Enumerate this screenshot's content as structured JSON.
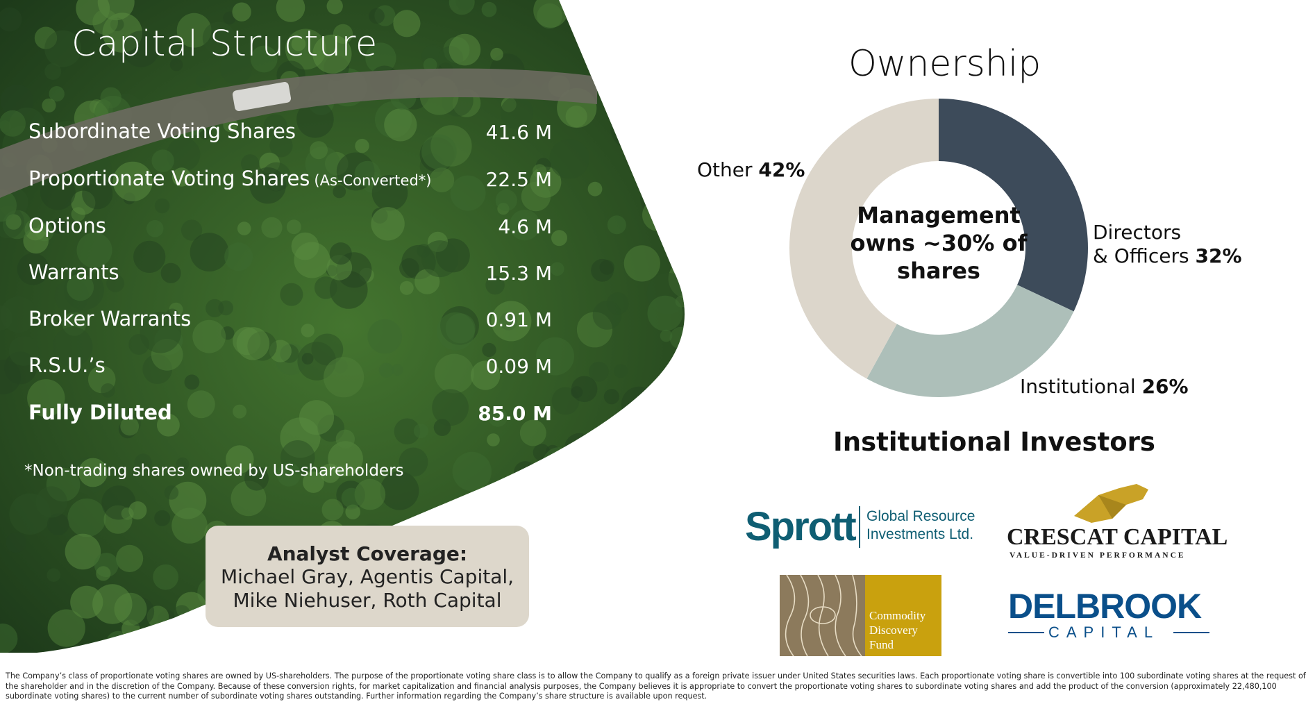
{
  "capital_structure": {
    "title": "Capital Structure",
    "rows": [
      {
        "label": "Subordinate Voting Shares",
        "note": "",
        "value": "41.6 M"
      },
      {
        "label": "Proportionate Voting Shares",
        "note": "(As-Converted*)",
        "value": "22.5 M"
      },
      {
        "label": "Options",
        "note": "",
        "value": "4.6 M"
      },
      {
        "label": "Warrants",
        "note": "",
        "value": "15.3 M"
      },
      {
        "label": "Broker Warrants",
        "note": "",
        "value": "0.91 M"
      },
      {
        "label": "R.S.U.’s",
        "note": "",
        "value": "0.09 M"
      },
      {
        "label": "Fully Diluted",
        "note": "",
        "value": "85.0 M"
      }
    ],
    "footnote": "*Non-trading shares owned by US-shareholders"
  },
  "analyst": {
    "heading": "Analyst Coverage:",
    "line1": "Michael Gray, Agentis Capital,",
    "line2": "Mike Niehuser, Roth Capital"
  },
  "ownership": {
    "title": "Ownership",
    "center_text": [
      "Management",
      "owns ~30% of",
      "shares"
    ],
    "labels": {
      "other": {
        "name": "Other",
        "pct": "42%"
      },
      "directors": {
        "line1": "Directors",
        "line2": "& Officers",
        "pct": "32%"
      },
      "institutional": {
        "name": "Institutional",
        "pct": "26%"
      }
    }
  },
  "chart_data": {
    "type": "pie",
    "donut": true,
    "categories": [
      "Directors & Officers",
      "Institutional",
      "Other"
    ],
    "values": [
      32,
      26,
      42
    ],
    "colors": [
      "#3d4b5a",
      "#adbfb9",
      "#dcd6cb"
    ]
  },
  "investors": {
    "title": "Institutional Investors",
    "sprott": {
      "name": "Sprott",
      "sub1": "Global Resource",
      "sub2": "Investments Ltd."
    },
    "crescat": {
      "name": "CRESCAT CAPITAL",
      "tagline": "VALUE-DRIVEN PERFORMANCE"
    },
    "commodity": {
      "line1": "Commodity",
      "line2": "Discovery",
      "line3": "Fund"
    },
    "delbrook": {
      "name": "DELBROOK",
      "sub": "CAPITAL"
    }
  },
  "disclaimer": "The Company’s class of proportionate voting shares are owned by US-shareholders. The purpose of the proportionate voting share class is to allow the Company to qualify as a foreign private issuer under United States securities laws. Each proportionate voting share is convertible into 100 subordinate voting shares at the request of the shareholder and in the discretion of the Company.  Because of these conversion rights, for market capitalization and financial analysis purposes, the Company believes it is appropriate to convert the proportionate voting shares to subordinate voting shares and add the product of the conversion (approximately 22,480,100 subordinate voting shares) to the current number of subordinate voting shares outstanding.  Further information regarding the Company’s share structure is available upon request.",
  "colors": {
    "forest_dark": "#1f3a1c",
    "forest_mid": "#3e6b2e",
    "analyst_bg": "#ddd7cb",
    "sprott_blue": "#0f5e73",
    "crescat_gold": "#c9a227",
    "commodity_gold": "#c9a10e",
    "delbrook_blue": "#0a4f8a"
  }
}
